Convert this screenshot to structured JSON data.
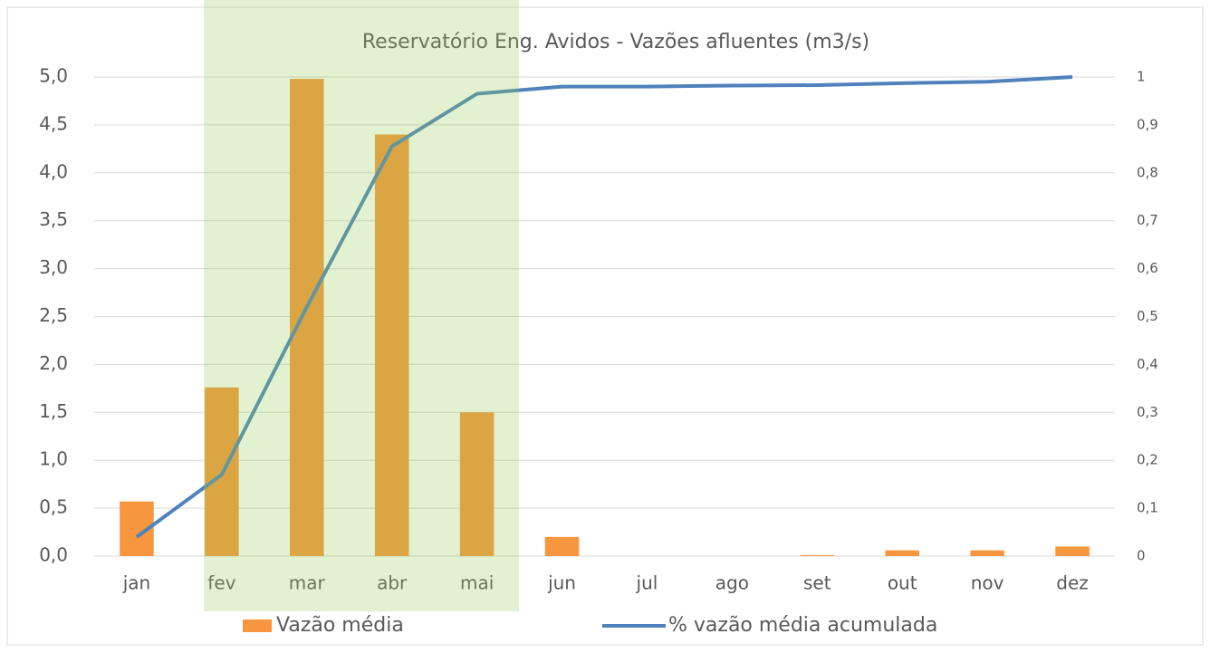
{
  "chart_data": {
    "type": "bar_line",
    "title": "Reservatório Eng. Avidos - Vazões afluentes (m3/s)",
    "categories": [
      "jan",
      "fev",
      "mar",
      "abr",
      "mai",
      "jun",
      "jul",
      "ago",
      "set",
      "out",
      "nov",
      "dez"
    ],
    "series": [
      {
        "name": "Vazão média",
        "color": "#f7963f",
        "type": "bar",
        "values": [
          0.57,
          1.76,
          4.98,
          4.4,
          1.5,
          0.2,
          0,
          0,
          0.01,
          0.06,
          0.06,
          0.1
        ]
      },
      {
        "name": "% vazão média acumulada",
        "color": "#4f81bd",
        "type": "line",
        "axis": "y2",
        "values": [
          0.04,
          0.17,
          0.52,
          0.855,
          0.965,
          0.98,
          0.98,
          0.982,
          0.983,
          0.987,
          0.99,
          1.0
        ]
      }
    ],
    "ylim": [
      0,
      5
    ],
    "yticks": [
      {
        "value": 0,
        "label": "0,0"
      },
      {
        "value": 0.5,
        "label": "0,5"
      },
      {
        "value": 1,
        "label": "1,0"
      },
      {
        "value": 1.5,
        "label": "1,5"
      },
      {
        "value": 2,
        "label": "2,0"
      },
      {
        "value": 2.5,
        "label": "2,5"
      },
      {
        "value": 3,
        "label": "3,0"
      },
      {
        "value": 3.5,
        "label": "3,5"
      },
      {
        "value": 4,
        "label": "4,0"
      },
      {
        "value": 4.5,
        "label": "4,5"
      },
      {
        "value": 5,
        "label": "5,0"
      }
    ],
    "y2lim": [
      0,
      1
    ],
    "y2ticks": [
      0,
      {
        "value": 0.1,
        "label": "0,1"
      },
      {
        "value": 0.2,
        "label": "0,2"
      },
      {
        "value": 0.3,
        "label": "0,3"
      },
      {
        "value": 0.4,
        "label": "0,4"
      },
      {
        "value": 0.5,
        "label": "0,5"
      },
      {
        "value": 0.6,
        "label": "0,6"
      },
      {
        "value": 0.7,
        "label": "0,7"
      },
      {
        "value": 0.8,
        "label": "0,8"
      },
      {
        "value": 0.9,
        "label": "0,9"
      },
      1
    ],
    "grid": true,
    "legend": "bottom"
  }
}
